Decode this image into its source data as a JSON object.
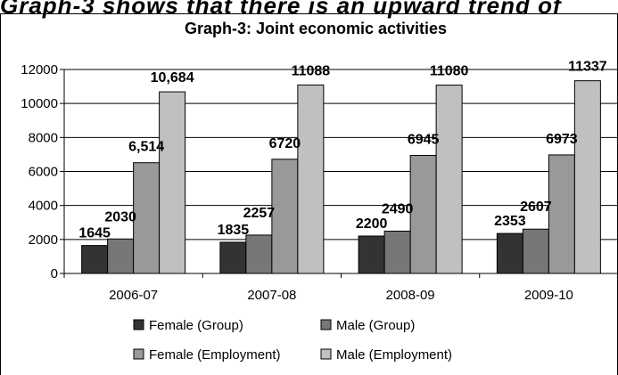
{
  "header_text": "Graph-3 shows that there is an upward trend of",
  "chart_data": {
    "type": "bar",
    "title": "Graph-3: Joint economic activities",
    "categories": [
      "2006-07",
      "2007-08",
      "2008-09",
      "2009-10"
    ],
    "ylim": [
      0,
      12000
    ],
    "yticks": [
      "0",
      "2000",
      "4000",
      "6000",
      "8000",
      "10000",
      "12000"
    ],
    "grid": true,
    "legend_position": "bottom",
    "series": [
      {
        "name": "Female (Group)",
        "color": "#333333",
        "values": [
          1645,
          1835,
          2200,
          2353
        ],
        "labels": [
          "1645",
          "1835",
          "2200",
          "2353"
        ]
      },
      {
        "name": "Male (Group)",
        "color": "#777777",
        "values": [
          2030,
          2257,
          2490,
          2607
        ],
        "labels": [
          "2030",
          "2257",
          "2490",
          "2607"
        ]
      },
      {
        "name": "Female (Employment)",
        "color": "#999999",
        "values": [
          6514,
          6720,
          6945,
          6973
        ],
        "labels": [
          "6,514",
          "6720",
          "6945",
          "6973"
        ]
      },
      {
        "name": "Male (Employment)",
        "color": "#c0c0c0",
        "values": [
          10684,
          11088,
          11080,
          11337
        ],
        "labels": [
          "10,684",
          "11088",
          "11080",
          "11337"
        ]
      }
    ]
  }
}
